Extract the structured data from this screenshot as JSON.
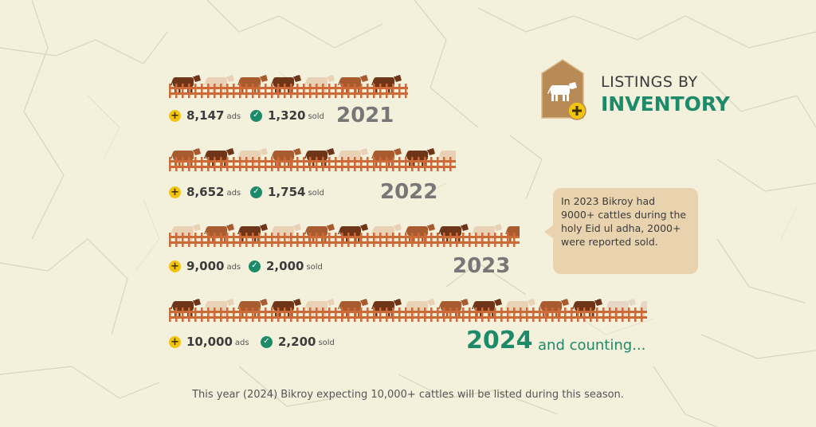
{
  "colors": {
    "accent": "#1d8a6a",
    "plus": "#f1c40f",
    "fence": "#cd6a38",
    "cow_dark": "#6e3519",
    "cow_brown": "#a85b2f",
    "cow_cream": "#e9d1b5",
    "cow_faded": "#e6d6c4",
    "callout": "#e8d3ae",
    "year_gray": "#777777"
  },
  "title": {
    "icon": "cow-icon",
    "badge_icon": "plus-icon",
    "line1": "LISTINGS BY",
    "line2": "INVENTORY"
  },
  "chart_data": {
    "type": "table",
    "title": "LISTINGS BY INVENTORY",
    "rows": [
      {
        "year": "2021",
        "ads": "8,147",
        "ads_label": "ads",
        "sold": "1,320",
        "sold_label": "sold",
        "ads_value": 8147,
        "sold_value": 1320,
        "cow_icons": 7,
        "faded_icons": 0
      },
      {
        "year": "2022",
        "ads": "8,652",
        "ads_label": "ads",
        "sold": "1,754",
        "sold_label": "sold",
        "ads_value": 8652,
        "sold_value": 1754,
        "cow_icons": 10,
        "faded_icons": 0
      },
      {
        "year": "2023",
        "ads": "9,000",
        "ads_label": "ads",
        "sold": "2,000",
        "sold_label": "sold",
        "ads_value": 9000,
        "sold_value": 2000,
        "cow_icons": 13,
        "faded_icons": 0
      },
      {
        "year": "2024",
        "suffix": "and counting...",
        "ads": "10,000",
        "ads_label": "ads",
        "sold": "2,200",
        "sold_label": "sold",
        "ads_value": 10000,
        "sold_value": 2200,
        "cow_icons": 13,
        "faded_icons": 3
      }
    ]
  },
  "callout": {
    "text": "In 2023 Bikroy had 9000+ cattles during the holy Eid ul adha, 2000+ were reported sold."
  },
  "footer": {
    "text": "This year (2024) Bikroy expecting 10,000+ cattles will be listed during this season."
  }
}
